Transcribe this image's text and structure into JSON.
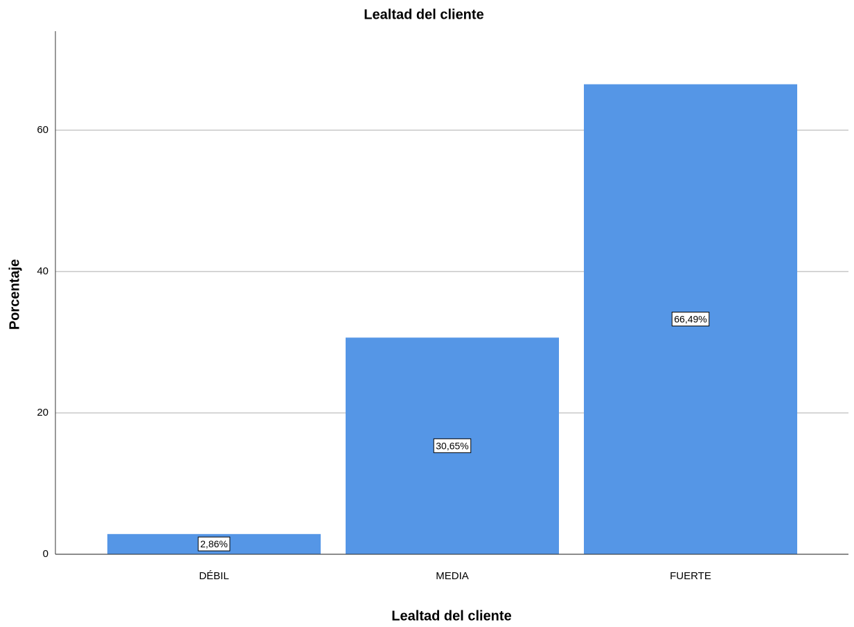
{
  "chart_data": {
    "type": "bar",
    "title": "Lealtad del cliente",
    "x_label": "Lealtad del cliente",
    "y_label": "Porcentaje",
    "categories": [
      "DÉBIL",
      "MEDIA",
      "FUERTE"
    ],
    "values": [
      2.86,
      30.65,
      66.49
    ],
    "value_labels": [
      "2,86%",
      "30,65%",
      "66,49%"
    ],
    "color": "#5596e6",
    "ylim": [
      0,
      74
    ],
    "yticks": [
      0,
      20,
      40,
      60
    ],
    "grid": true
  }
}
